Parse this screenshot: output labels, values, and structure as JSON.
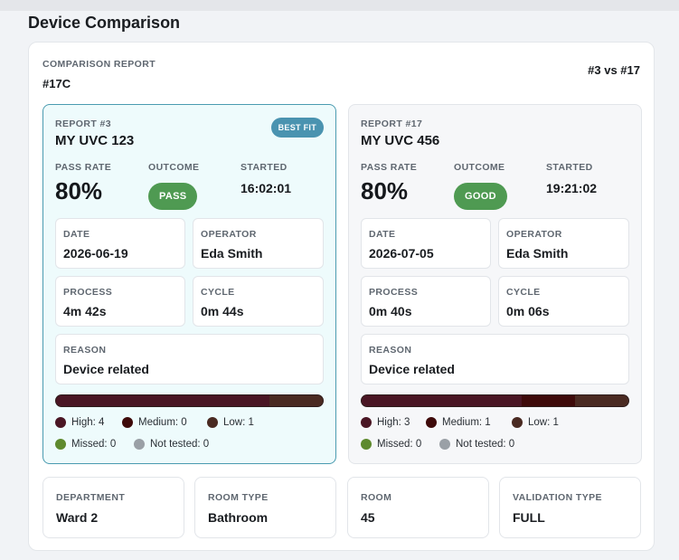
{
  "page": {
    "title": "Device Comparison"
  },
  "comparison": {
    "label": "COMPARISON REPORT",
    "id": "#17C",
    "vs": "#3 vs #17"
  },
  "reports": [
    {
      "label": "REPORT #3",
      "name": "MY UVC 123",
      "badge": "BEST FIT",
      "pass_rate_label": "PASS RATE",
      "pass_rate": "80%",
      "outcome_label": "OUTCOME",
      "outcome": "PASS",
      "started_label": "STARTED",
      "started": "16:02:01",
      "date_label": "DATE",
      "date": "2026-06-19",
      "operator_label": "OPERATOR",
      "operator": "Eda Smith",
      "process_label": "PROCESS",
      "process": "4m 42s",
      "cycle_label": "CYCLE",
      "cycle": "0m 44s",
      "reason_label": "REASON",
      "reason": "Device related",
      "legend": {
        "high": "High: 4",
        "medium": "Medium: 0",
        "low": "Low: 1",
        "missed": "Missed: 0",
        "not_tested": "Not tested: 0"
      },
      "bar_counts": {
        "high": 4,
        "medium": 0,
        "low": 1
      }
    },
    {
      "label": "REPORT #17",
      "name": "MY UVC 456",
      "pass_rate_label": "PASS RATE",
      "pass_rate": "80%",
      "outcome_label": "OUTCOME",
      "outcome": "GOOD",
      "started_label": "STARTED",
      "started": "19:21:02",
      "date_label": "DATE",
      "date": "2026-07-05",
      "operator_label": "OPERATOR",
      "operator": "Eda Smith",
      "process_label": "PROCESS",
      "process": "0m 40s",
      "cycle_label": "CYCLE",
      "cycle": "0m 06s",
      "reason_label": "REASON",
      "reason": "Device related",
      "legend": {
        "high": "High: 3",
        "medium": "Medium: 1",
        "low": "Low: 1",
        "missed": "Missed: 0",
        "not_tested": "Not tested: 0"
      },
      "bar_counts": {
        "high": 3,
        "medium": 1,
        "low": 1
      }
    }
  ],
  "details": [
    {
      "label": "DEPARTMENT",
      "value": "Ward 2"
    },
    {
      "label": "ROOM TYPE",
      "value": "Bathroom"
    },
    {
      "label": "ROOM",
      "value": "45"
    },
    {
      "label": "VALIDATION TYPE",
      "value": "FULL"
    }
  ],
  "colors": {
    "high": "#4a1624",
    "medium": "#3e0a0a",
    "low": "#4a2a22",
    "missed": "#5e8a2e",
    "not_tested": "#9aa0a6",
    "accent": "#4a93b0",
    "success": "#4f9a52"
  }
}
